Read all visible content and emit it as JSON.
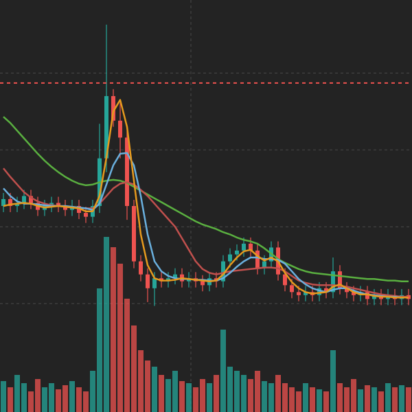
{
  "chart_data": {
    "type": "candlestick",
    "background": "#232323",
    "grid": true,
    "grid_color": "#4a4a4a",
    "ylim": [
      -0.41,
      4.95
    ],
    "yticks": [
      1,
      2,
      3,
      4
    ],
    "xlim": [
      -0.5,
      59.5
    ],
    "xticks": [
      27.3
    ],
    "up_color": "#26a69a",
    "down_color": "#ef5350",
    "price_line": {
      "value": 3.87,
      "color": "#ef5350"
    },
    "open": [
      2.27,
      2.36,
      2.27,
      2.31,
      2.4,
      2.31,
      2.22,
      2.27,
      2.31,
      2.27,
      2.22,
      2.27,
      2.18,
      2.13,
      2.27,
      2.89,
      3.7,
      3.38,
      3.16,
      2.27,
      1.55,
      1.38,
      1.2,
      1.33,
      1.29,
      1.33,
      1.38,
      1.29,
      1.33,
      1.29,
      1.24,
      1.33,
      1.29,
      1.55,
      1.64,
      1.69,
      1.78,
      1.69,
      1.46,
      1.55,
      1.73,
      1.38,
      1.24,
      1.15,
      1.11,
      1.15,
      1.11,
      1.2,
      1.15,
      1.42,
      1.2,
      1.15,
      1.11,
      1.15,
      1.06,
      1.11,
      1.06,
      1.11,
      1.06,
      1.11
    ],
    "high": [
      2.44,
      2.44,
      2.39,
      2.48,
      2.48,
      2.39,
      2.35,
      2.39,
      2.39,
      2.35,
      2.35,
      2.35,
      2.26,
      2.35,
      3.34,
      4.63,
      3.79,
      3.61,
      3.25,
      2.35,
      1.63,
      1.46,
      1.41,
      1.41,
      1.41,
      1.46,
      1.46,
      1.41,
      1.41,
      1.37,
      1.41,
      1.41,
      1.63,
      1.72,
      1.77,
      1.86,
      1.86,
      1.77,
      1.63,
      1.81,
      1.81,
      1.46,
      1.32,
      1.23,
      1.23,
      1.23,
      1.28,
      1.28,
      1.6,
      1.5,
      1.28,
      1.23,
      1.23,
      1.23,
      1.19,
      1.19,
      1.19,
      1.19,
      1.19,
      1.19
    ],
    "low": [
      2.19,
      2.19,
      2.19,
      2.23,
      2.23,
      2.14,
      2.14,
      2.19,
      2.19,
      2.14,
      2.14,
      2.1,
      2.05,
      2.05,
      2.18,
      2.71,
      3.3,
      2.89,
      2.09,
      1.46,
      1.29,
      1.02,
      0.97,
      1.21,
      1.21,
      1.25,
      1.21,
      1.21,
      1.21,
      1.16,
      1.16,
      1.21,
      1.21,
      1.47,
      1.56,
      1.61,
      1.61,
      1.38,
      1.38,
      1.47,
      1.3,
      1.16,
      1.07,
      1.03,
      1.03,
      1.03,
      1.03,
      1.07,
      1.07,
      1.12,
      1.07,
      1.03,
      1.03,
      0.98,
      0.98,
      0.98,
      0.98,
      0.98,
      0.98,
      0.98
    ],
    "close": [
      2.36,
      2.27,
      2.31,
      2.4,
      2.31,
      2.22,
      2.27,
      2.31,
      2.27,
      2.22,
      2.27,
      2.18,
      2.13,
      2.27,
      2.89,
      3.7,
      3.38,
      3.16,
      2.27,
      1.55,
      1.38,
      1.2,
      1.33,
      1.29,
      1.33,
      1.38,
      1.29,
      1.33,
      1.29,
      1.24,
      1.33,
      1.29,
      1.55,
      1.64,
      1.69,
      1.78,
      1.69,
      1.46,
      1.55,
      1.73,
      1.38,
      1.24,
      1.15,
      1.11,
      1.15,
      1.11,
      1.2,
      1.15,
      1.42,
      1.2,
      1.15,
      1.11,
      1.15,
      1.06,
      1.11,
      1.06,
      1.11,
      1.06,
      1.11,
      1.06
    ],
    "volume": {
      "ylim": [
        0,
        100
      ],
      "values": [
        15,
        12,
        18,
        14,
        10,
        16,
        12,
        14,
        11,
        13,
        15,
        12,
        10,
        20,
        60,
        85,
        80,
        72,
        55,
        42,
        30,
        25,
        22,
        18,
        16,
        20,
        15,
        14,
        12,
        16,
        14,
        18,
        40,
        22,
        20,
        18,
        16,
        20,
        15,
        14,
        18,
        14,
        12,
        10,
        14,
        12,
        11,
        10,
        30,
        14,
        12,
        16,
        11,
        13,
        12,
        10,
        14,
        12,
        13,
        12
      ]
    },
    "series": [
      {
        "color": "#5ab040",
        "values": [
          3.43,
          3.35,
          3.25,
          3.15,
          3.05,
          2.95,
          2.86,
          2.78,
          2.71,
          2.65,
          2.6,
          2.56,
          2.54,
          2.55,
          2.58,
          2.6,
          2.61,
          2.6,
          2.57,
          2.52,
          2.47,
          2.42,
          2.37,
          2.32,
          2.27,
          2.22,
          2.17,
          2.12,
          2.07,
          2.03,
          2.0,
          1.97,
          1.93,
          1.9,
          1.86,
          1.83,
          1.81,
          1.78,
          1.72,
          1.65,
          1.58,
          1.53,
          1.49,
          1.45,
          1.42,
          1.4,
          1.39,
          1.38,
          1.37,
          1.36,
          1.35,
          1.34,
          1.33,
          1.32,
          1.32,
          1.31,
          1.3,
          1.3,
          1.29,
          1.29
        ]
      },
      {
        "color": "#c0504d",
        "values": [
          2.76,
          2.65,
          2.55,
          2.45,
          2.38,
          2.33,
          2.3,
          2.28,
          2.27,
          2.26,
          2.25,
          2.24,
          2.24,
          2.24,
          2.3,
          2.4,
          2.5,
          2.56,
          2.58,
          2.55,
          2.48,
          2.4,
          2.3,
          2.2,
          2.1,
          2.0,
          1.85,
          1.7,
          1.55,
          1.45,
          1.4,
          1.38,
          1.4,
          1.42,
          1.43,
          1.44,
          1.45,
          1.46,
          1.47,
          1.47,
          1.46,
          1.42,
          1.36,
          1.3,
          1.27,
          1.25,
          1.24,
          1.24,
          1.24,
          1.23,
          1.22,
          1.2,
          1.18,
          1.16,
          1.14,
          1.12,
          1.11,
          1.1,
          1.09,
          1.09
        ]
      },
      {
        "color": "#6ab0de",
        "values": [
          2.5,
          2.4,
          2.33,
          2.3,
          2.3,
          2.29,
          2.28,
          2.27,
          2.27,
          2.27,
          2.26,
          2.25,
          2.24,
          2.22,
          2.3,
          2.55,
          2.8,
          2.95,
          2.96,
          2.8,
          2.4,
          1.9,
          1.55,
          1.42,
          1.36,
          1.33,
          1.32,
          1.32,
          1.31,
          1.31,
          1.3,
          1.3,
          1.33,
          1.4,
          1.48,
          1.55,
          1.6,
          1.6,
          1.58,
          1.58,
          1.57,
          1.52,
          1.42,
          1.32,
          1.25,
          1.2,
          1.17,
          1.15,
          1.18,
          1.2,
          1.2,
          1.17,
          1.14,
          1.12,
          1.11,
          1.1,
          1.09,
          1.09,
          1.08,
          1.08
        ]
      },
      {
        "color": "#e69a1e",
        "values": [
          2.27,
          2.29,
          2.3,
          2.31,
          2.3,
          2.27,
          2.25,
          2.26,
          2.27,
          2.26,
          2.25,
          2.24,
          2.2,
          2.2,
          2.4,
          2.9,
          3.5,
          3.65,
          3.3,
          2.6,
          1.9,
          1.5,
          1.33,
          1.3,
          1.3,
          1.31,
          1.33,
          1.32,
          1.31,
          1.3,
          1.29,
          1.3,
          1.38,
          1.5,
          1.6,
          1.68,
          1.7,
          1.62,
          1.56,
          1.6,
          1.55,
          1.4,
          1.28,
          1.2,
          1.15,
          1.13,
          1.14,
          1.15,
          1.22,
          1.25,
          1.2,
          1.15,
          1.12,
          1.12,
          1.1,
          1.09,
          1.09,
          1.08,
          1.08,
          1.08
        ]
      }
    ]
  }
}
